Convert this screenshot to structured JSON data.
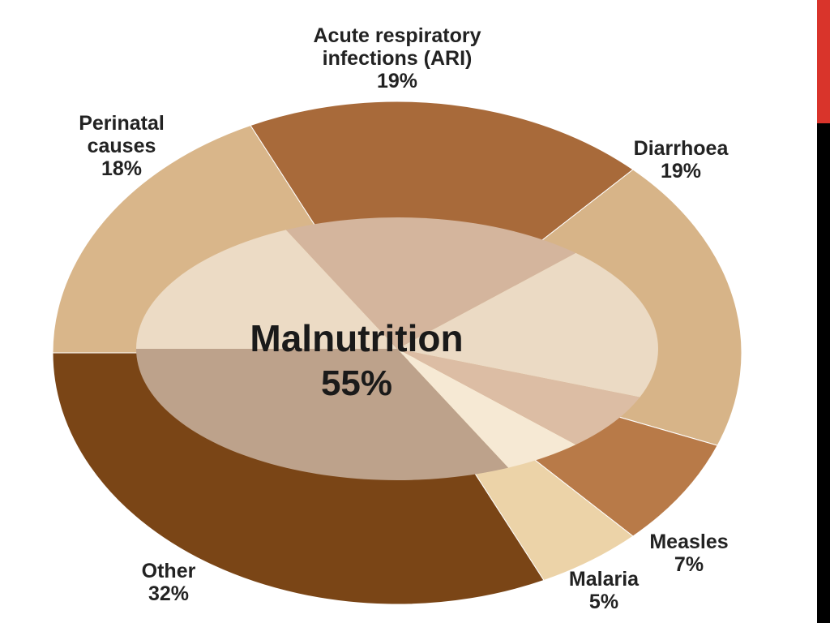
{
  "chart_data": {
    "type": "pie",
    "categories": [
      "Perinatal causes",
      "Acute respiratory infections (ARI)",
      "Diarrhoea",
      "Measles",
      "Malaria",
      "Other"
    ],
    "values": [
      18,
      19,
      19,
      7,
      5,
      32
    ],
    "value_labels": [
      "18%",
      "19%",
      "19%",
      "7%",
      "5%",
      "32%"
    ],
    "colors": [
      "#d9b68a",
      "#a86a3a",
      "#d7b488",
      "#b87a48",
      "#ecd3a8",
      "#7a4516"
    ],
    "center_label": "Malnutrition",
    "center_value": 55,
    "center_value_label": "55%"
  }
}
